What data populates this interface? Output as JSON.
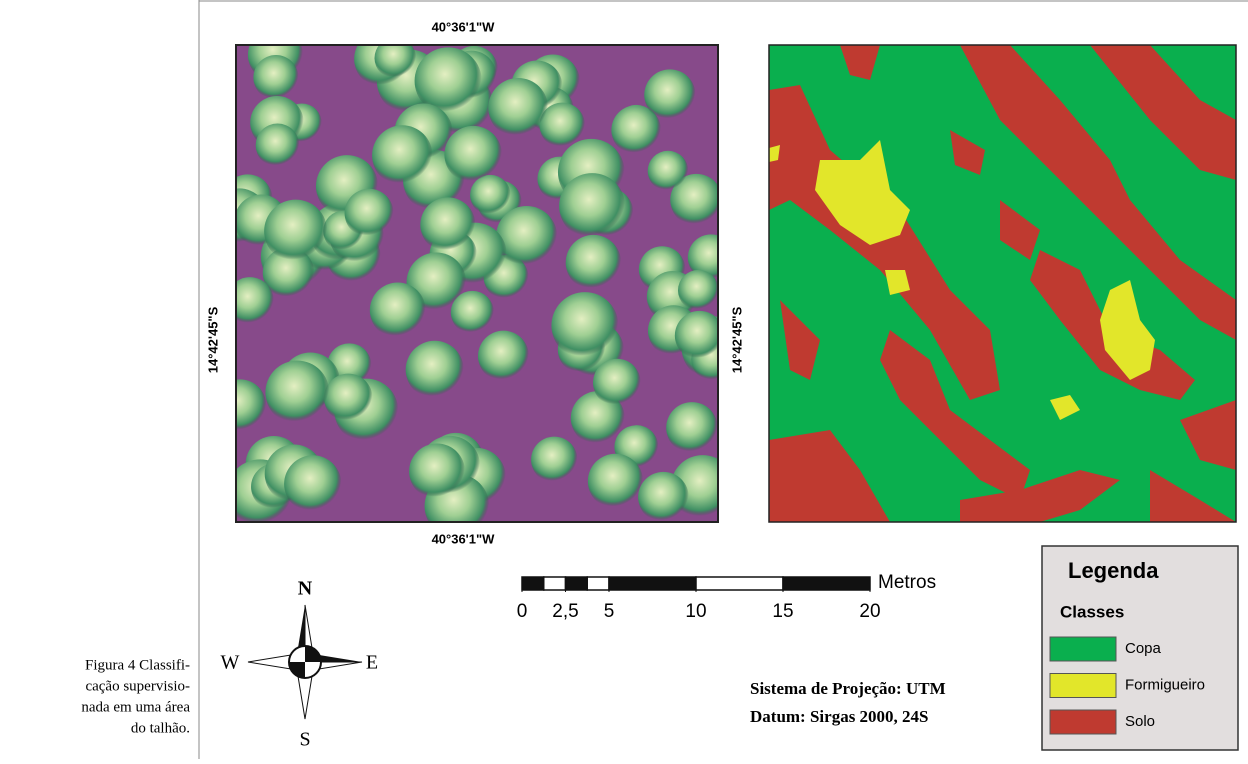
{
  "caption": [
    "Figura 4 Classifi-",
    "cação supervisio-",
    "nada em uma área",
    "do talhão."
  ],
  "image_labels": {
    "top": "40°36'1\"W",
    "bottom": "40°36'1\"W",
    "left": "14°42'45\"S",
    "right": "14°42'45\"S"
  },
  "scale_bar": {
    "unit": "Metros",
    "ticks": [
      0,
      {
        "value": 2.5,
        "label": "2,5"
      },
      5,
      10,
      15,
      20
    ]
  },
  "compass": {
    "north": "N",
    "south": "S",
    "east": "E",
    "west": "W"
  },
  "projection": [
    "Sistema de Projeção: UTM",
    "Datum:  Sirgas  2000,  24S"
  ],
  "legend": {
    "title": "Legenda",
    "subtitle": "Classes",
    "classes": [
      {
        "name": "Copa",
        "color": "#0aaf4e"
      },
      {
        "name": "Formigueiro",
        "color": "#e2e62a"
      },
      {
        "name": "Solo",
        "color": "#bf3a30"
      }
    ]
  }
}
